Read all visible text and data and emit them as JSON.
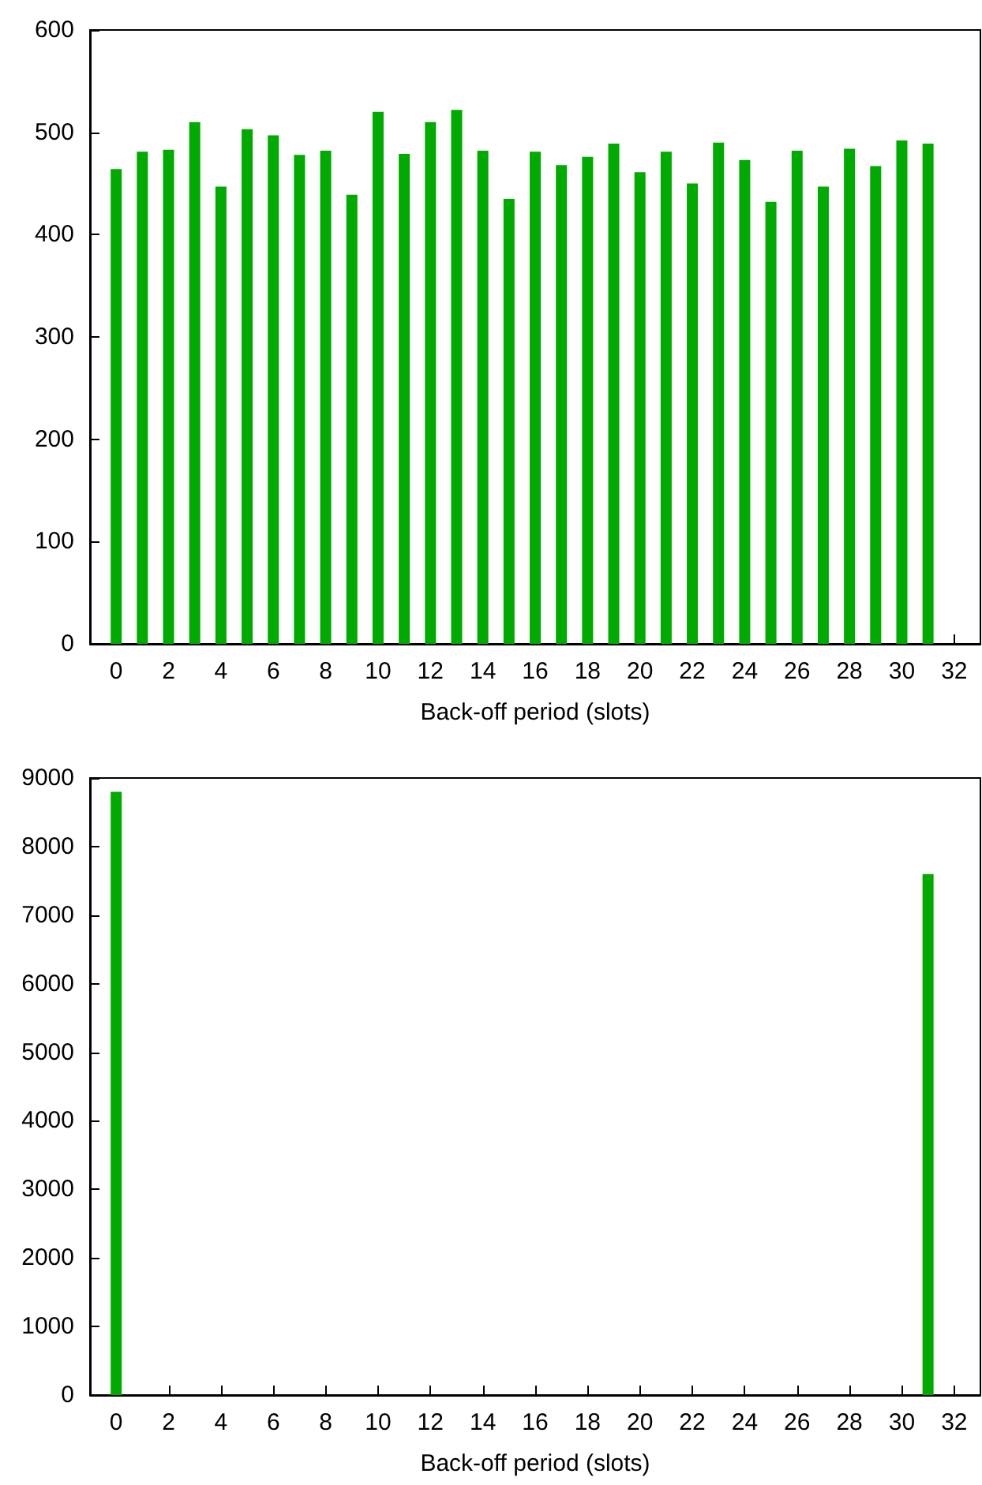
{
  "chart_data": [
    {
      "type": "bar",
      "xlabel": "Back-off period (slots)",
      "x": [
        0,
        1,
        2,
        3,
        4,
        5,
        6,
        7,
        8,
        9,
        10,
        11,
        12,
        13,
        14,
        15,
        16,
        17,
        18,
        19,
        20,
        21,
        22,
        23,
        24,
        25,
        26,
        27,
        28,
        29,
        30,
        31
      ],
      "series": [
        {
          "color": "#00aa00",
          "values": [
            464,
            481,
            483,
            510,
            447,
            503,
            497,
            478,
            482,
            439,
            520,
            479,
            510,
            522,
            482,
            435,
            481,
            468,
            476,
            489,
            461,
            481,
            450,
            490,
            473,
            432,
            482,
            447,
            484,
            467,
            492,
            489
          ]
        }
      ],
      "xlim": [
        -1,
        33
      ],
      "xticks": [
        0,
        2,
        4,
        6,
        8,
        10,
        12,
        14,
        16,
        18,
        20,
        22,
        24,
        26,
        28,
        30,
        32
      ],
      "ylim": [
        0,
        600
      ],
      "yticks": [
        0,
        100,
        200,
        300,
        400,
        500,
        600
      ],
      "grid": false
    },
    {
      "type": "bar",
      "xlabel": "Back-off period (slots)",
      "x": [
        0,
        31
      ],
      "series": [
        {
          "color": "#00aa00",
          "values": [
            8800,
            7600
          ]
        }
      ],
      "xlim": [
        -1,
        33
      ],
      "xticks": [
        0,
        2,
        4,
        6,
        8,
        10,
        12,
        14,
        16,
        18,
        20,
        22,
        24,
        26,
        28,
        30,
        32
      ],
      "ylim": [
        0,
        9000
      ],
      "yticks": [
        0,
        1000,
        2000,
        3000,
        4000,
        5000,
        6000,
        7000,
        8000,
        9000
      ],
      "grid": false
    }
  ]
}
